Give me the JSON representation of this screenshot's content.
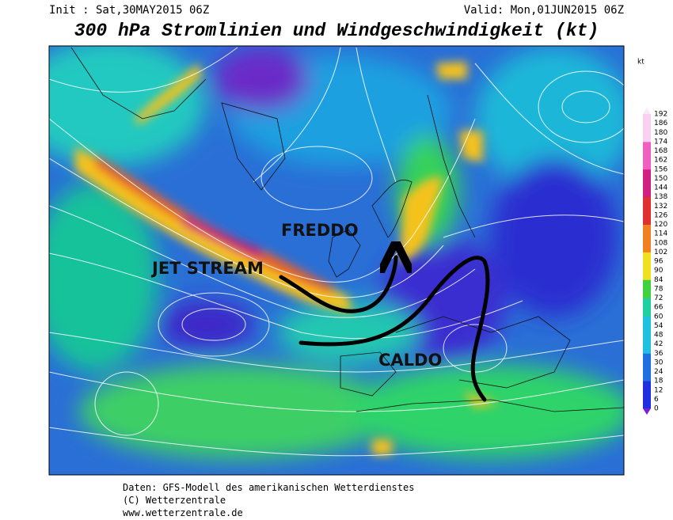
{
  "header": {
    "init": "Init : Sat,30MAY2015 06Z",
    "valid": "Valid: Mon,01JUN2015 06Z",
    "title": "300 hPa Stromlinien und Windgeschwindigkeit (kt)"
  },
  "annotations": {
    "cold": "FREDDO",
    "jet": "JET STREAM",
    "warm": "CALDO"
  },
  "legend": {
    "unit": "kt",
    "ticks": [
      0,
      6,
      12,
      18,
      24,
      30,
      36,
      42,
      48,
      54,
      60,
      66,
      72,
      78,
      84,
      90,
      96,
      102,
      108,
      114,
      120,
      126,
      132,
      138,
      144,
      150,
      156,
      162,
      168,
      174,
      180,
      186,
      192
    ]
  },
  "footer": {
    "source": "Daten: GFS-Modell des amerikanischen Wetterdienstes",
    "copyright": "(C) Wetterzentrale",
    "url": "www.wetterzentrale.de"
  }
}
